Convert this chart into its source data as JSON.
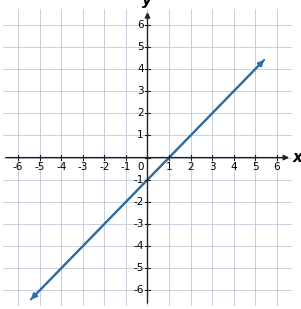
{
  "xlim": [
    -6.7,
    6.7
  ],
  "ylim": [
    -6.7,
    6.7
  ],
  "xticks": [
    -6,
    -5,
    -4,
    -3,
    -2,
    -1,
    0,
    1,
    2,
    3,
    4,
    5,
    6
  ],
  "yticks": [
    -6,
    -5,
    -4,
    -3,
    -2,
    -1,
    1,
    2,
    3,
    4,
    5,
    6
  ],
  "line_x": [
    -5.5,
    5.5
  ],
  "line_y": [
    -6.5,
    4.5
  ],
  "line_color": "#2e6fa3",
  "line_width": 1.5,
  "xlabel": "x",
  "ylabel": "y",
  "grid_color": "#c0c8d8",
  "axis_color": "#222222",
  "tick_fontsize": 7.5,
  "label_fontsize": 11,
  "arrow_size": 8
}
